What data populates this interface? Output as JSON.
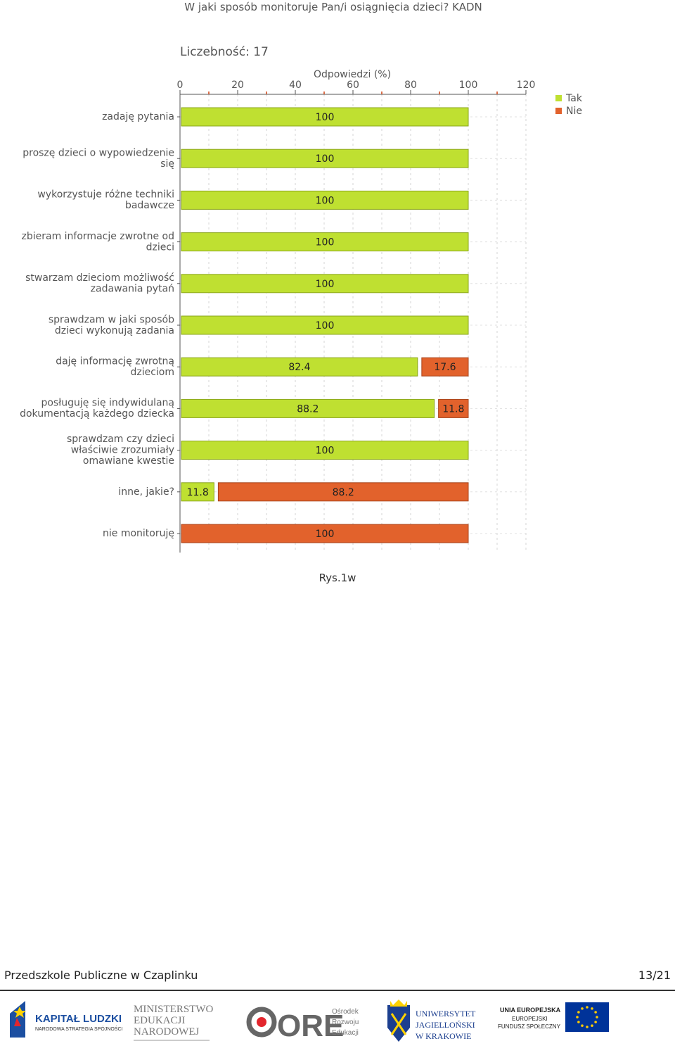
{
  "chart_data": {
    "type": "bar",
    "orientation": "horizontal",
    "stacked": true,
    "title": "W jaki sposób monitoruje Pan/i osiągnięcia dzieci?  KADN",
    "count_label": "Liczebność: 17",
    "xlabel": "Odpowiedzi (%)",
    "xlim": [
      0,
      120
    ],
    "xticks": [
      "0",
      "20",
      "40",
      "60",
      "80",
      "100",
      "120"
    ],
    "grid": true,
    "legend_position": "top-right",
    "categories": [
      [
        "zadaję pytania"
      ],
      [
        "proszę dzieci o wypowiedzenie",
        "się"
      ],
      [
        "wykorzystuje różne techniki",
        "badawcze"
      ],
      [
        "zbieram informacje zwrotne od",
        "dzieci"
      ],
      [
        "stwarzam dzieciom możliwość",
        "zadawania pytań"
      ],
      [
        "sprawdzam w jaki sposób",
        "dzieci wykonują zadania"
      ],
      [
        "daję informację zwrotną",
        "dzieciom"
      ],
      [
        "posługuję się indywidulaną",
        "dokumentacją każdego dziecka"
      ],
      [
        "sprawdzam czy dzieci",
        "właściwie zrozumiały",
        "omawiane kwestie"
      ],
      [
        "inne, jakie?"
      ],
      [
        "nie monitoruję"
      ]
    ],
    "series": [
      {
        "name": "Tak",
        "color": "#bfe031",
        "stroke": "#8aa61a",
        "values": [
          100,
          100,
          100,
          100,
          100,
          100,
          82.4,
          88.2,
          100,
          11.8,
          0
        ],
        "labels": [
          "100",
          "100",
          "100",
          "100",
          "100",
          "100",
          "82.4",
          "88.2",
          "100",
          "11.8",
          ""
        ]
      },
      {
        "name": "Nie",
        "color": "#e2622c",
        "stroke": "#a8431a",
        "values": [
          0,
          0,
          0,
          0,
          0,
          0,
          17.6,
          11.8,
          0,
          88.2,
          100
        ],
        "labels": [
          "",
          "",
          "",
          "",
          "",
          "",
          "17.6",
          "11.8",
          "",
          "88.2",
          "100"
        ]
      }
    ]
  },
  "caption": "Rys.1w",
  "footer": {
    "school": "Przedszkole Publiczne w Czaplinku",
    "page": "13/21"
  },
  "logos": {
    "kapital": {
      "line1": "KAPITAŁ LUDZKI",
      "line2": "NARODOWA STRATEGIA SPÓJNOŚCI"
    },
    "men": {
      "line1": "MINISTERSTWO",
      "line2": "EDUKACJI",
      "line3": "NARODOWEJ"
    },
    "ore": {
      "main": "ORE",
      "line1": "Ośrodek",
      "line2": "Rozwoju",
      "line3": "Edukacji"
    },
    "uj": {
      "line1": "UNIWERSYTET",
      "line2": "JAGIELLOŃSKI",
      "line3": "W KRAKOWIE"
    },
    "eu": {
      "line1": "UNIA EUROPEJSKA",
      "line2": "EUROPEJSKI",
      "line3": "FUNDUSZ SPOŁECZNY"
    }
  },
  "colors": {
    "tak": "#bfe031",
    "nie": "#e2622c",
    "eu_blue": "#003399",
    "eu_star": "#ffcc00"
  }
}
